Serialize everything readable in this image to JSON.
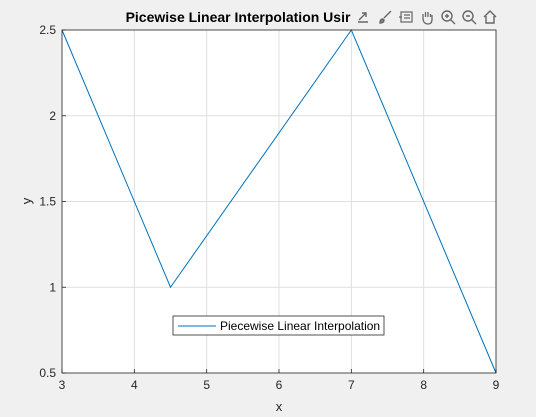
{
  "chart_data": {
    "type": "line",
    "title": "Picewise Linear Interpolation Usir",
    "xlabel": "x",
    "ylabel": "y",
    "xlim": [
      3,
      9
    ],
    "ylim": [
      0.5,
      2.5
    ],
    "xticks": [
      3,
      4,
      5,
      6,
      7,
      8,
      9
    ],
    "yticks": [
      0.5,
      1,
      1.5,
      2,
      2.5
    ],
    "grid": true,
    "legend_position": "bottom-center",
    "series": [
      {
        "name": "Piecewise Linear Interpolation",
        "color": "#0072bd",
        "x": [
          3,
          4.5,
          7,
          9
        ],
        "y": [
          2.5,
          1,
          2.5,
          0.5
        ]
      }
    ]
  },
  "toolbar": {
    "icons": [
      "export-icon",
      "brush-icon",
      "datatip-icon",
      "pan-icon",
      "zoom-in-icon",
      "zoom-out-icon",
      "home-icon"
    ]
  }
}
